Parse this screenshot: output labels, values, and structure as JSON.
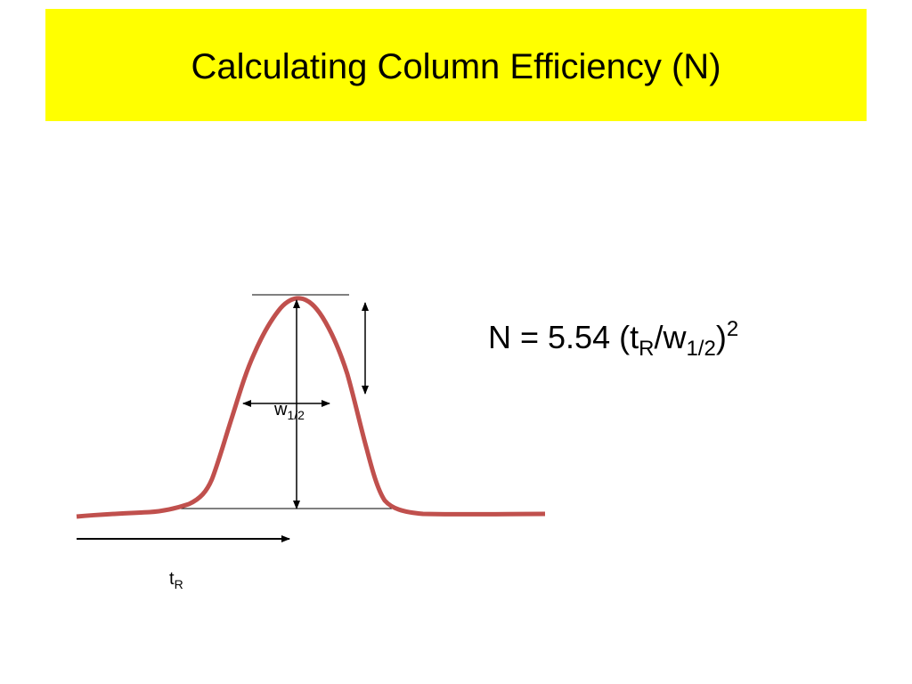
{
  "title": "Calculating Column Efficiency (N)",
  "formula": {
    "lead": "N = 5.54 (t",
    "sub_r": "R",
    "mid": "/w",
    "sub_half": "1/2",
    "close": ")",
    "power": "2"
  },
  "labels": {
    "width": {
      "text": "w",
      "sub": "1/2"
    },
    "retention": {
      "text": "t",
      "sub": "R"
    }
  }
}
